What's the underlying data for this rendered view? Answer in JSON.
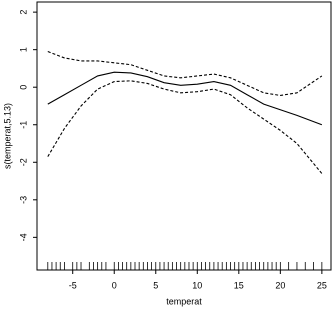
{
  "chart_data": {
    "type": "line",
    "x_label": "temperat",
    "y_label": "s(temperat,5.13)",
    "x": [
      -8,
      -6,
      -4,
      -2,
      0,
      2,
      4,
      6,
      8,
      10,
      12,
      14,
      16,
      18,
      20,
      22,
      25
    ],
    "series": [
      {
        "color": "#000000",
        "dashed": false,
        "values": [
          -0.45,
          -0.2,
          0.05,
          0.3,
          0.4,
          0.38,
          0.28,
          0.12,
          0.05,
          0.08,
          0.15,
          0.05,
          -0.2,
          -0.45,
          -0.6,
          -0.75,
          -1.0
        ]
      },
      {
        "color": "#000000",
        "dashed": true,
        "values": [
          0.95,
          0.78,
          0.7,
          0.7,
          0.65,
          0.6,
          0.45,
          0.3,
          0.25,
          0.3,
          0.35,
          0.25,
          0.05,
          -0.15,
          -0.22,
          -0.15,
          0.3
        ]
      },
      {
        "color": "#000000",
        "dashed": true,
        "values": [
          -1.85,
          -1.1,
          -0.5,
          -0.05,
          0.15,
          0.17,
          0.1,
          -0.05,
          -0.15,
          -0.12,
          -0.05,
          -0.2,
          -0.55,
          -0.85,
          -1.15,
          -1.5,
          -2.3
        ]
      }
    ],
    "rug": [
      -8,
      -7.5,
      -7,
      -6.5,
      -6,
      -5,
      -4.5,
      -4,
      -3,
      -2.5,
      -2,
      -1.5,
      -1,
      0,
      0.5,
      1,
      1.5,
      2,
      2.5,
      3,
      3.5,
      4,
      4.5,
      5,
      5.5,
      6,
      6.5,
      7,
      7.5,
      8,
      8.5,
      9,
      9.5,
      10,
      10.5,
      11,
      11.5,
      12,
      12.5,
      13,
      13.5,
      14,
      14.5,
      15,
      15.5,
      16,
      16.5,
      17,
      17.5,
      18,
      18.5,
      19,
      19.5,
      20,
      21,
      22,
      23,
      24,
      25
    ],
    "xlim": [
      -9.3,
      26.1
    ],
    "ylim": [
      -4.87,
      2.27
    ],
    "xticks": [
      -5,
      0,
      5,
      10,
      15,
      20,
      25
    ],
    "yticks": [
      -4,
      -3,
      -2,
      -1,
      0,
      1,
      2
    ]
  }
}
